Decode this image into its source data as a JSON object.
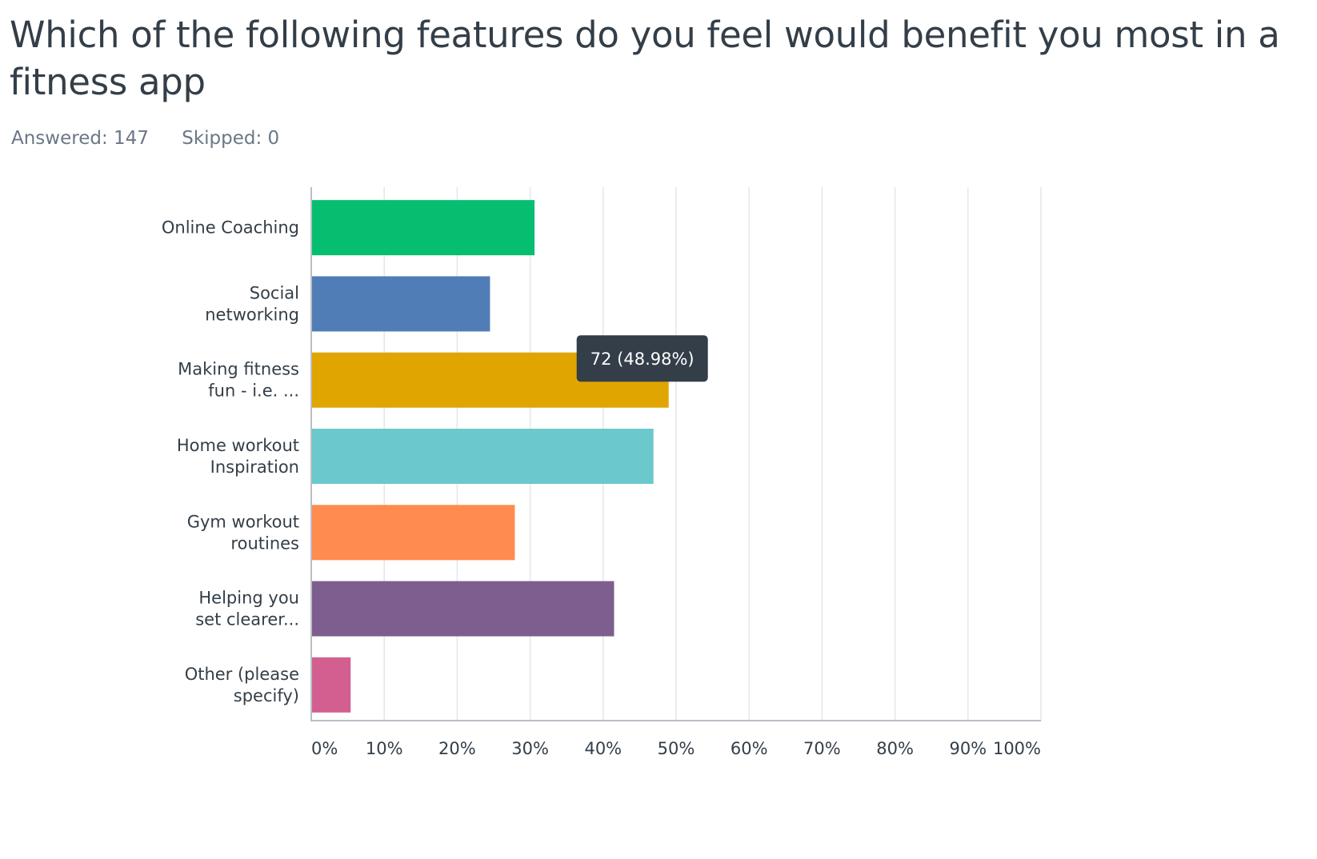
{
  "title": "Which of the following features do you feel would benefit you most in a fitness app",
  "stats": {
    "answered": "Answered: 147",
    "skipped": "Skipped: 0"
  },
  "tooltip": {
    "category_index": 2,
    "text": "72 (48.98%)"
  },
  "colors": {
    "grid": "#e3e6e9",
    "axis": "#b9bfc5",
    "tooltip_bg": "#333e48"
  },
  "chart_data": {
    "type": "bar",
    "orientation": "horizontal",
    "categories": [
      {
        "lines": [
          "Online Coaching"
        ],
        "value": 30.6,
        "color": "#05be70"
      },
      {
        "lines": [
          "Social",
          "networking"
        ],
        "value": 24.5,
        "color": "#517db6"
      },
      {
        "lines": [
          "Making fitness",
          "fun - i.e. ..."
        ],
        "value": 48.98,
        "color": "#e0a500"
      },
      {
        "lines": [
          "Home workout",
          "Inspiration"
        ],
        "value": 46.9,
        "color": "#6bc8cd"
      },
      {
        "lines": [
          "Gym workout",
          "routines"
        ],
        "value": 27.9,
        "color": "#ff8b4f"
      },
      {
        "lines": [
          "Helping you",
          "set clearer..."
        ],
        "value": 41.5,
        "color": "#7d5e8f"
      },
      {
        "lines": [
          "Other (please",
          "specify)"
        ],
        "value": 5.4,
        "color": "#d25f90"
      }
    ],
    "xticks": [
      "0%",
      "10%",
      "20%",
      "30%",
      "40%",
      "50%",
      "60%",
      "70%",
      "80%",
      "90%",
      "100%"
    ],
    "xlim": [
      0,
      100
    ],
    "grid": true,
    "legend": "none"
  }
}
